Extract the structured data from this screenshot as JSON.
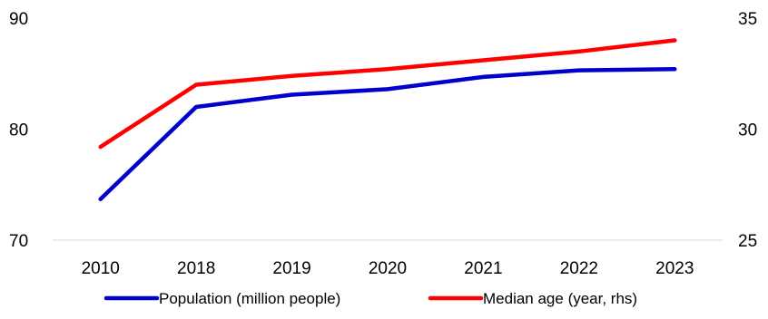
{
  "chart_data": {
    "type": "line",
    "categories": [
      "2010",
      "2018",
      "2019",
      "2020",
      "2021",
      "2022",
      "2023"
    ],
    "y_left": {
      "ylim": [
        70,
        90
      ],
      "ticks": [
        70,
        80,
        90
      ]
    },
    "y_right": {
      "ylim": [
        25,
        35
      ],
      "ticks": [
        25,
        30,
        35
      ]
    },
    "grid": false,
    "legend_position": "bottom",
    "series": [
      {
        "name": "Population (million people)",
        "axis": "left",
        "color": "#0000cc",
        "values": [
          73.7,
          82.0,
          83.1,
          83.6,
          84.7,
          85.3,
          85.4
        ]
      },
      {
        "name": "Median age (year, rhs)",
        "axis": "right",
        "color": "#ff0000",
        "values": [
          29.2,
          32.0,
          32.4,
          32.7,
          33.1,
          33.5,
          34.0
        ]
      }
    ]
  }
}
